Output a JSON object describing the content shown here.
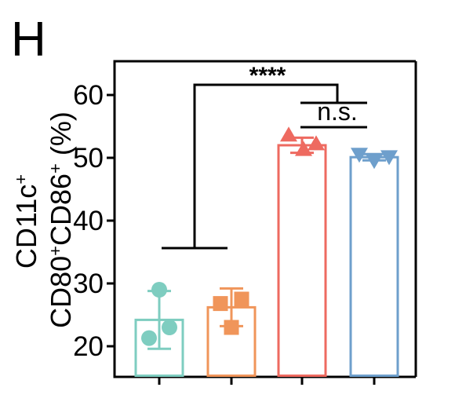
{
  "panel_label": "H",
  "chart_data": {
    "type": "bar",
    "title": "",
    "ylabel_line1": "CD11c",
    "ylabel_line1_sup": "+",
    "ylabel_line2_parts": [
      "CD80",
      "+",
      "CD86",
      "+",
      " (%)"
    ],
    "ylim": [
      18,
      65
    ],
    "yticks": [
      20,
      30,
      40,
      50,
      60
    ],
    "grid": false,
    "categories": [
      "",
      "",
      "",
      ""
    ],
    "bars": [
      {
        "mean": 24.2,
        "err": 4.6,
        "color": "#7ecdc0",
        "marker": "circle",
        "points": [
          29.0,
          21.3,
          23.0
        ]
      },
      {
        "mean": 26.2,
        "err": 3.0,
        "color": "#f0955a",
        "marker": "square",
        "points": [
          27.5,
          26.8,
          23.0
        ]
      },
      {
        "mean": 52.0,
        "err": 1.2,
        "color": "#ee6a60",
        "marker": "triangle-up",
        "points": [
          53.6,
          51.3,
          52.2
        ]
      },
      {
        "mean": 50.1,
        "err": 0.5,
        "color": "#6e9fcc",
        "marker": "triangle-down",
        "points": [
          50.6,
          49.6,
          50.2
        ]
      }
    ],
    "annotations": [
      {
        "text": "****",
        "type": "group-comparison"
      },
      {
        "text": "n.s.",
        "type": "pair-comparison"
      }
    ]
  }
}
